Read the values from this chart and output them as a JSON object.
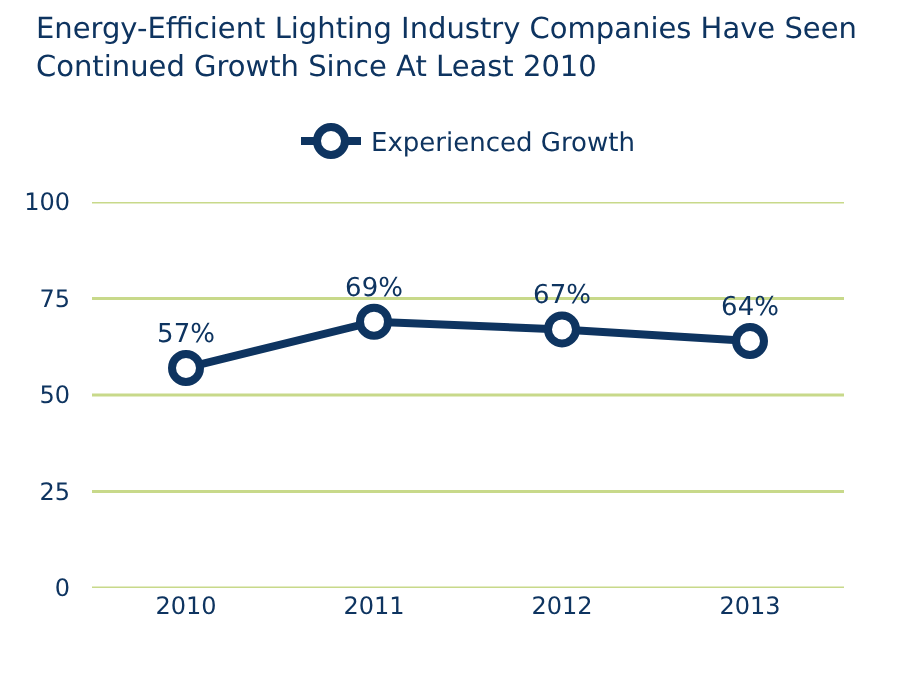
{
  "chart_data": {
    "type": "line",
    "title": "Energy-Efficient Lighting Industry Companies Have Seen Continued Growth Since At Least 2010",
    "categories": [
      "2010",
      "2011",
      "2012",
      "2013"
    ],
    "series": [
      {
        "name": "Experienced Growth",
        "color": "#0e3460",
        "values": [
          57,
          69,
          67,
          64
        ],
        "value_labels": [
          "57%",
          "69%",
          "67%",
          "64%"
        ]
      }
    ],
    "ylim": [
      0,
      100
    ],
    "yticks": [
      0,
      25,
      50,
      75,
      100
    ],
    "grid": "y",
    "legend": "top",
    "marker": "circle",
    "line_style": "solid"
  }
}
